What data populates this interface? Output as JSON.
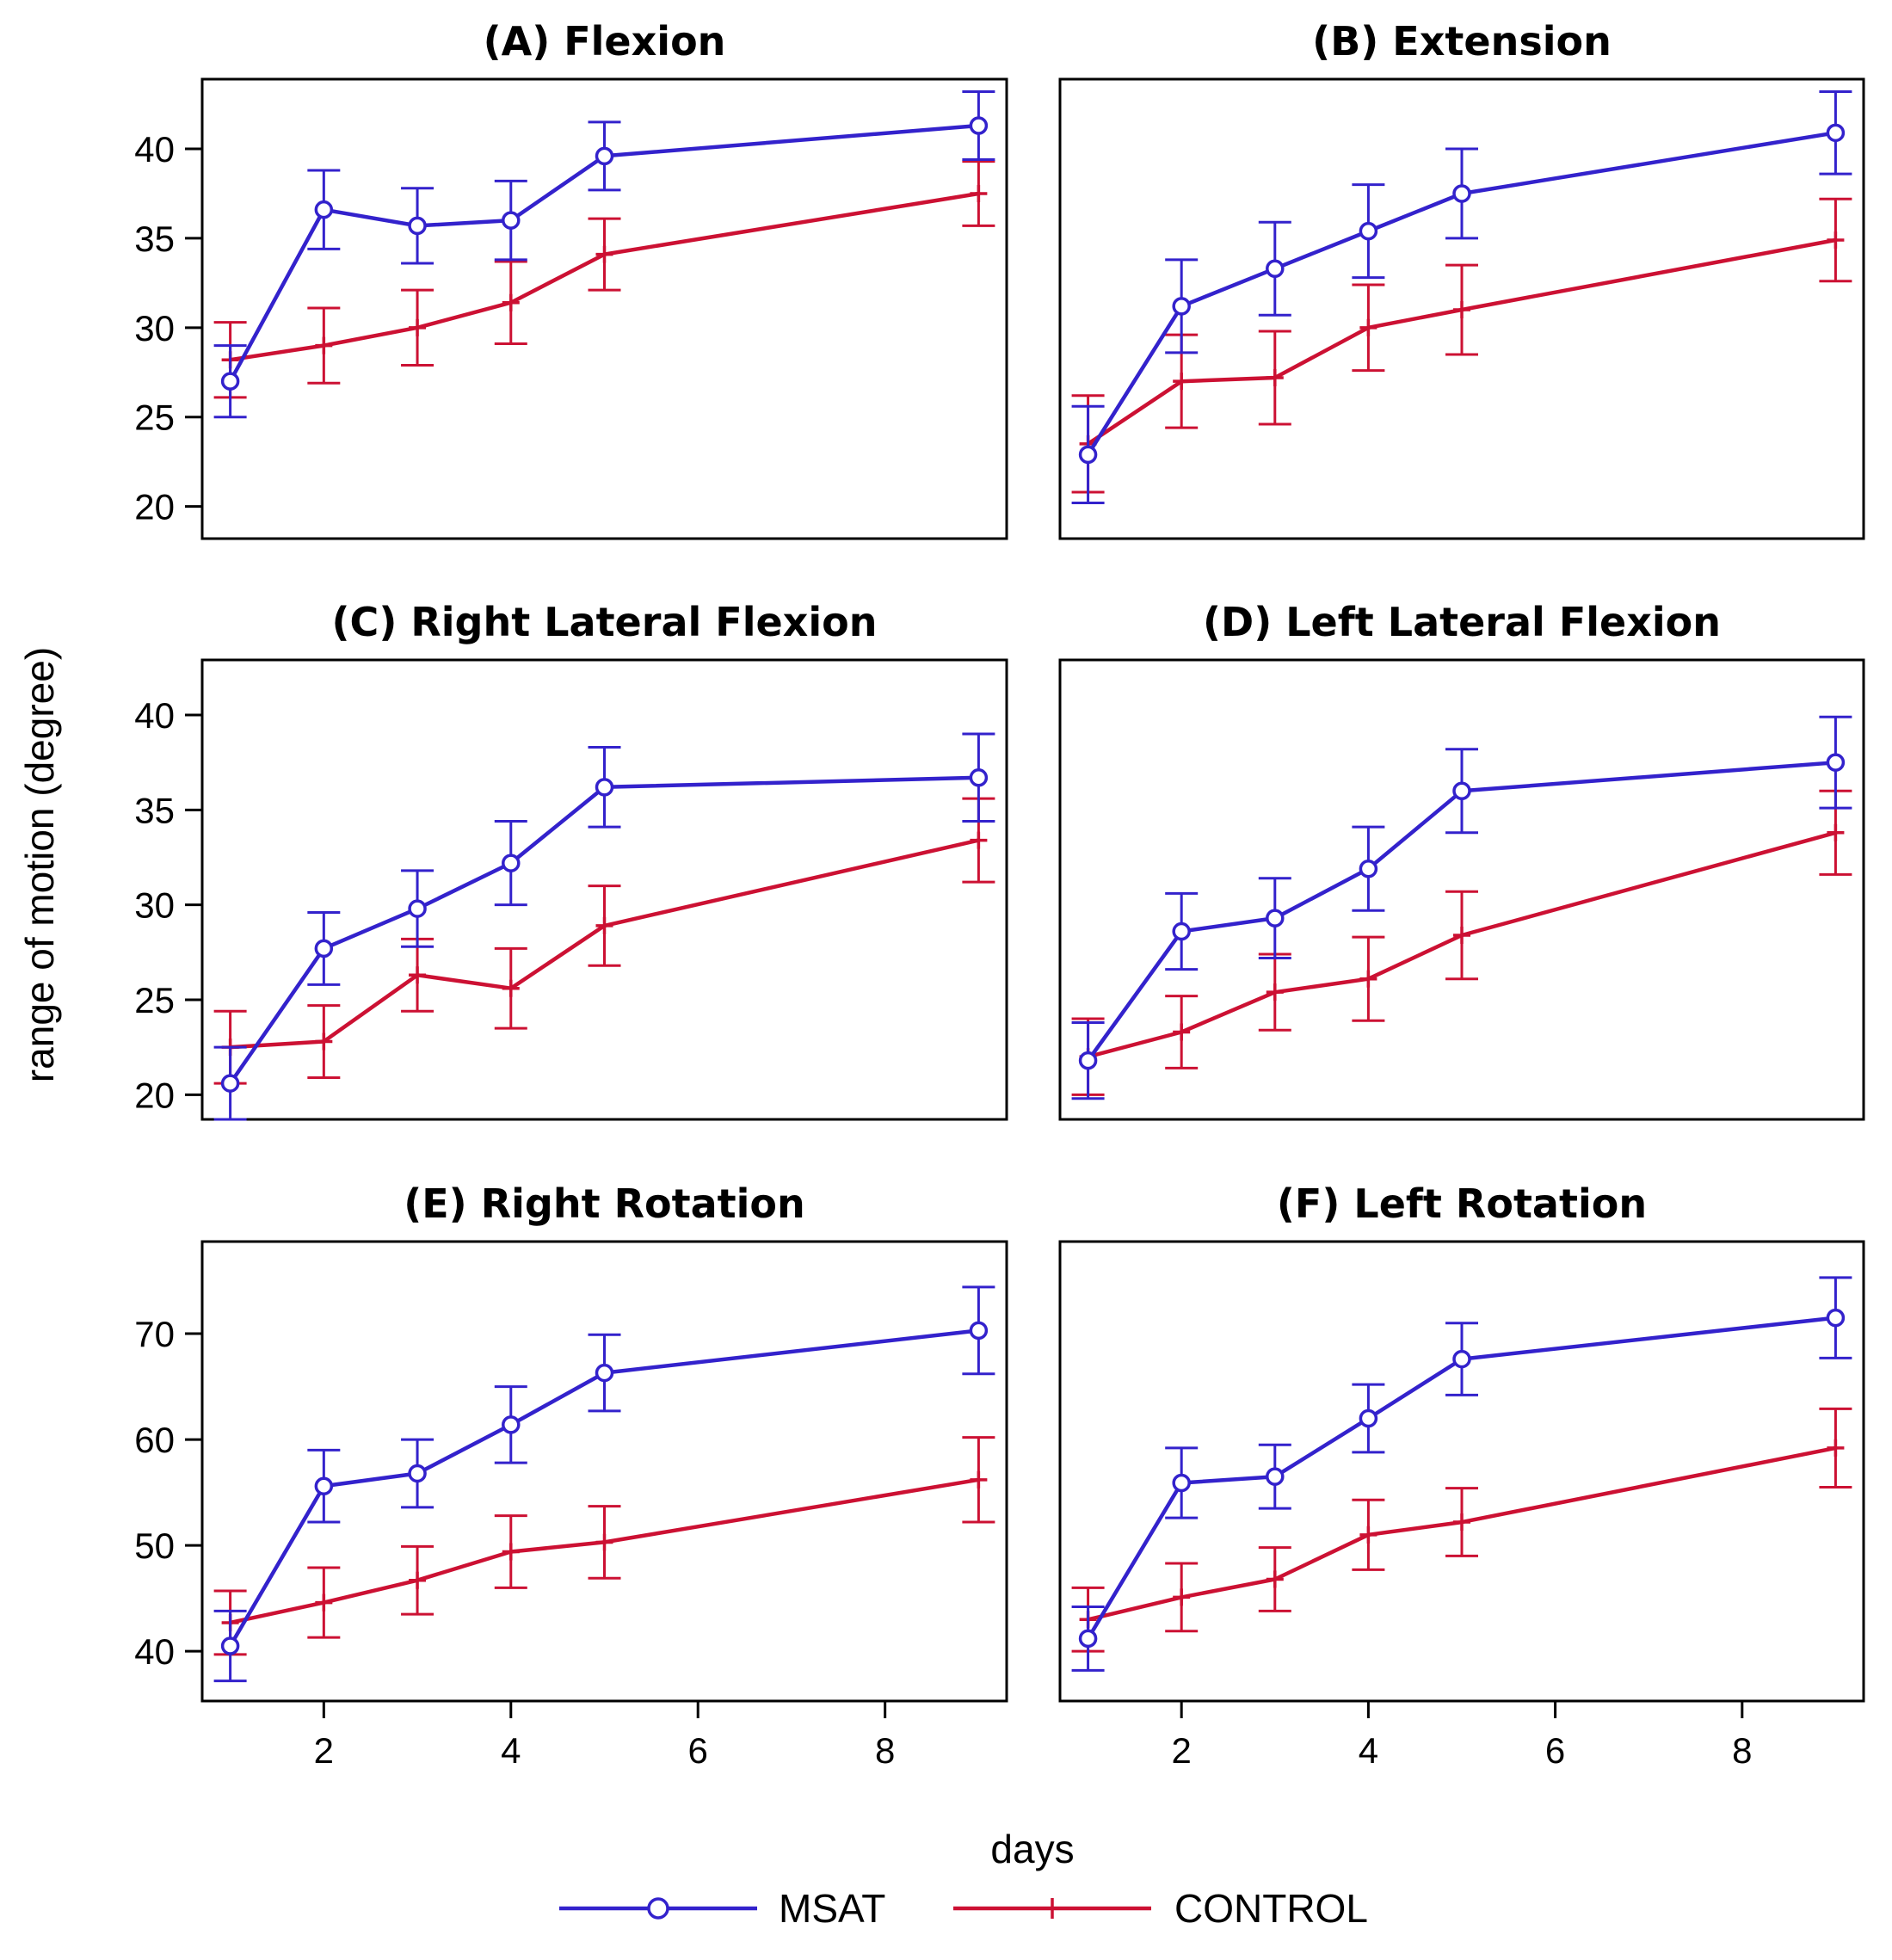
{
  "chart_data": {
    "type": "line",
    "panels": [
      {
        "title": "(A) Flexion",
        "x": [
          1,
          2,
          3,
          4,
          5,
          9
        ],
        "xlim": [
          0.7,
          9.3
        ],
        "ylim": [
          18.2,
          43.9
        ],
        "yticks": [
          20,
          25,
          30,
          35,
          40
        ],
        "series": [
          {
            "name": "MSAT",
            "values": [
              27.0,
              36.6,
              35.7,
              36.0,
              39.6,
              41.3
            ],
            "errors": [
              2.0,
              2.2,
              2.1,
              2.2,
              1.9,
              1.9
            ]
          },
          {
            "name": "CONTROL",
            "values": [
              28.2,
              29.0,
              30.0,
              31.4,
              34.1,
              37.5
            ],
            "errors": [
              2.1,
              2.1,
              2.1,
              2.3,
              2.0,
              1.8
            ]
          }
        ]
      },
      {
        "title": "(B) Extension",
        "x": [
          1,
          2,
          3,
          4,
          5,
          9
        ],
        "xlim": [
          0.7,
          9.3
        ],
        "ylim": [
          18.2,
          43.9
        ],
        "yticks": [
          20,
          25,
          30,
          35,
          40
        ],
        "series": [
          {
            "name": "MSAT",
            "values": [
              22.9,
              31.2,
              33.3,
              35.4,
              37.5,
              40.9
            ],
            "errors": [
              2.7,
              2.6,
              2.6,
              2.6,
              2.5,
              2.3
            ]
          },
          {
            "name": "CONTROL",
            "values": [
              23.5,
              27.0,
              27.2,
              30.0,
              31.0,
              34.9
            ],
            "errors": [
              2.7,
              2.6,
              2.6,
              2.4,
              2.5,
              2.3
            ]
          }
        ]
      },
      {
        "title": "(C) Right Lateral Flexion",
        "x": [
          1,
          2,
          3,
          4,
          5,
          9
        ],
        "xlim": [
          0.7,
          9.3
        ],
        "ylim": [
          18.7,
          42.9
        ],
        "yticks": [
          20,
          25,
          30,
          35,
          40
        ],
        "series": [
          {
            "name": "MSAT",
            "values": [
              20.6,
              27.7,
              29.8,
              32.2,
              36.2,
              36.7
            ],
            "errors": [
              1.9,
              1.9,
              2.0,
              2.2,
              2.1,
              2.3
            ]
          },
          {
            "name": "CONTROL",
            "values": [
              22.5,
              22.8,
              26.3,
              25.6,
              28.9,
              33.4
            ],
            "errors": [
              1.9,
              1.9,
              1.9,
              2.1,
              2.1,
              2.2
            ]
          }
        ]
      },
      {
        "title": "(D) Left Lateral Flexion",
        "x": [
          1,
          2,
          3,
          4,
          5,
          9
        ],
        "xlim": [
          0.7,
          9.3
        ],
        "ylim": [
          18.7,
          42.9
        ],
        "yticks": [
          20,
          25,
          30,
          35,
          40
        ],
        "series": [
          {
            "name": "MSAT",
            "values": [
              21.8,
              28.6,
              29.3,
              31.9,
              36.0,
              37.5
            ],
            "errors": [
              2.0,
              2.0,
              2.1,
              2.2,
              2.2,
              2.4
            ]
          },
          {
            "name": "CONTROL",
            "values": [
              22.0,
              23.3,
              25.4,
              26.1,
              28.4,
              33.8
            ],
            "errors": [
              2.0,
              1.9,
              2.0,
              2.2,
              2.3,
              2.2
            ]
          }
        ]
      },
      {
        "title": "(E) Right Rotation",
        "x": [
          1,
          2,
          3,
          4,
          5,
          9
        ],
        "xlim": [
          0.7,
          9.3
        ],
        "ylim": [
          35.3,
          78.7
        ],
        "yticks": [
          40,
          50,
          60,
          70
        ],
        "series": [
          {
            "name": "MSAT",
            "values": [
              40.5,
              55.6,
              56.8,
              61.4,
              66.3,
              70.3
            ],
            "errors": [
              3.3,
              3.4,
              3.2,
              3.6,
              3.6,
              4.1
            ]
          },
          {
            "name": "CONTROL",
            "values": [
              42.7,
              44.6,
              46.7,
              49.4,
              50.3,
              56.2
            ],
            "errors": [
              3.0,
              3.3,
              3.2,
              3.4,
              3.4,
              4.0
            ]
          }
        ]
      },
      {
        "title": "(F) Left Rotation",
        "x": [
          1,
          2,
          3,
          4,
          5,
          9
        ],
        "xlim": [
          0.7,
          9.3
        ],
        "ylim": [
          35.3,
          78.7
        ],
        "yticks": [
          40,
          50,
          60,
          70
        ],
        "series": [
          {
            "name": "MSAT",
            "values": [
              41.2,
              55.9,
              56.5,
              62.0,
              67.6,
              71.5
            ],
            "errors": [
              3.0,
              3.3,
              3.0,
              3.2,
              3.4,
              3.8
            ]
          },
          {
            "name": "CONTROL",
            "values": [
              43.0,
              45.1,
              46.8,
              51.0,
              52.2,
              59.2
            ],
            "errors": [
              3.0,
              3.2,
              3.0,
              3.3,
              3.2,
              3.7
            ]
          }
        ]
      }
    ],
    "xticks": [
      2,
      4,
      6,
      8
    ],
    "xlabel": "days",
    "ylabel": "range of motion (degree)",
    "legend": {
      "position": "bottom-center",
      "entries": [
        {
          "name": "MSAT",
          "color": "#3322cc",
          "marker": "circle"
        },
        {
          "name": "CONTROL",
          "color": "#cc1133",
          "marker": "plus"
        }
      ]
    }
  }
}
